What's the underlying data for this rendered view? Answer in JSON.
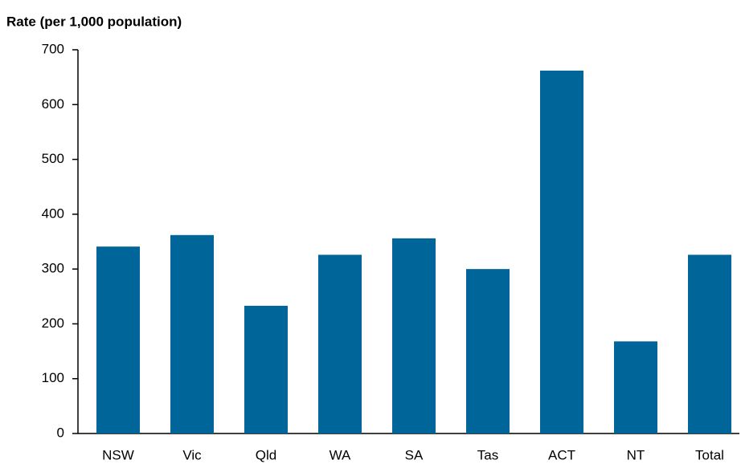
{
  "chart_data": {
    "type": "bar",
    "title": "Rate (per 1,000 population)",
    "categories": [
      "NSW",
      "Vic",
      "Qld",
      "WA",
      "SA",
      "Tas",
      "ACT",
      "NT",
      "Total"
    ],
    "values": [
      341,
      362,
      233,
      326,
      356,
      300,
      662,
      168,
      326
    ],
    "color": "#00669a",
    "ylim": [
      0,
      700
    ],
    "yticks": [
      0,
      100,
      200,
      300,
      400,
      500,
      600,
      700
    ],
    "grid": false
  }
}
